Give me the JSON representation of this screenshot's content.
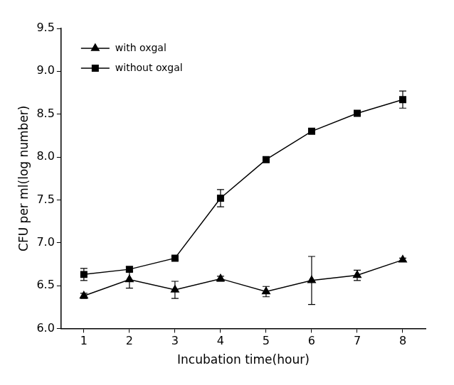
{
  "chart_data": {
    "type": "line",
    "x_label": "Incubation time(hour)",
    "y_label": "CFU per ml(log number)",
    "categories": [
      "1",
      "2",
      "3",
      "4",
      "5",
      "6",
      "7",
      "8"
    ],
    "series": [
      {
        "name": "with oxgal",
        "color": "#000000",
        "marker": "triangle",
        "line_style": "solid",
        "values": [
          6.38,
          6.57,
          6.45,
          6.58,
          6.43,
          6.56,
          6.62,
          6.8
        ],
        "errors": [
          0.03,
          0.1,
          0.1,
          0.03,
          0.06,
          0.28,
          0.06,
          0.02
        ]
      },
      {
        "name": "without oxgal",
        "color": "#000000",
        "marker": "square",
        "line_style": "solid",
        "values": [
          6.63,
          6.69,
          6.82,
          7.52,
          7.97,
          8.3,
          8.51,
          8.67
        ],
        "errors": [
          0.07,
          0.03,
          0.02,
          0.1,
          0.03,
          0.03,
          0.03,
          0.1
        ]
      }
    ],
    "ylim": [
      6.0,
      9.5
    ],
    "yticks": [
      {
        "value": 6.0,
        "label": "6.0"
      },
      6.5,
      {
        "value": 7.0,
        "label": "7.0"
      },
      7.5,
      {
        "value": 8.0,
        "label": "8.0"
      },
      8.5,
      {
        "value": 9.0,
        "label": "9.0"
      },
      9.5
    ],
    "grid": false,
    "legend": "upper left"
  }
}
